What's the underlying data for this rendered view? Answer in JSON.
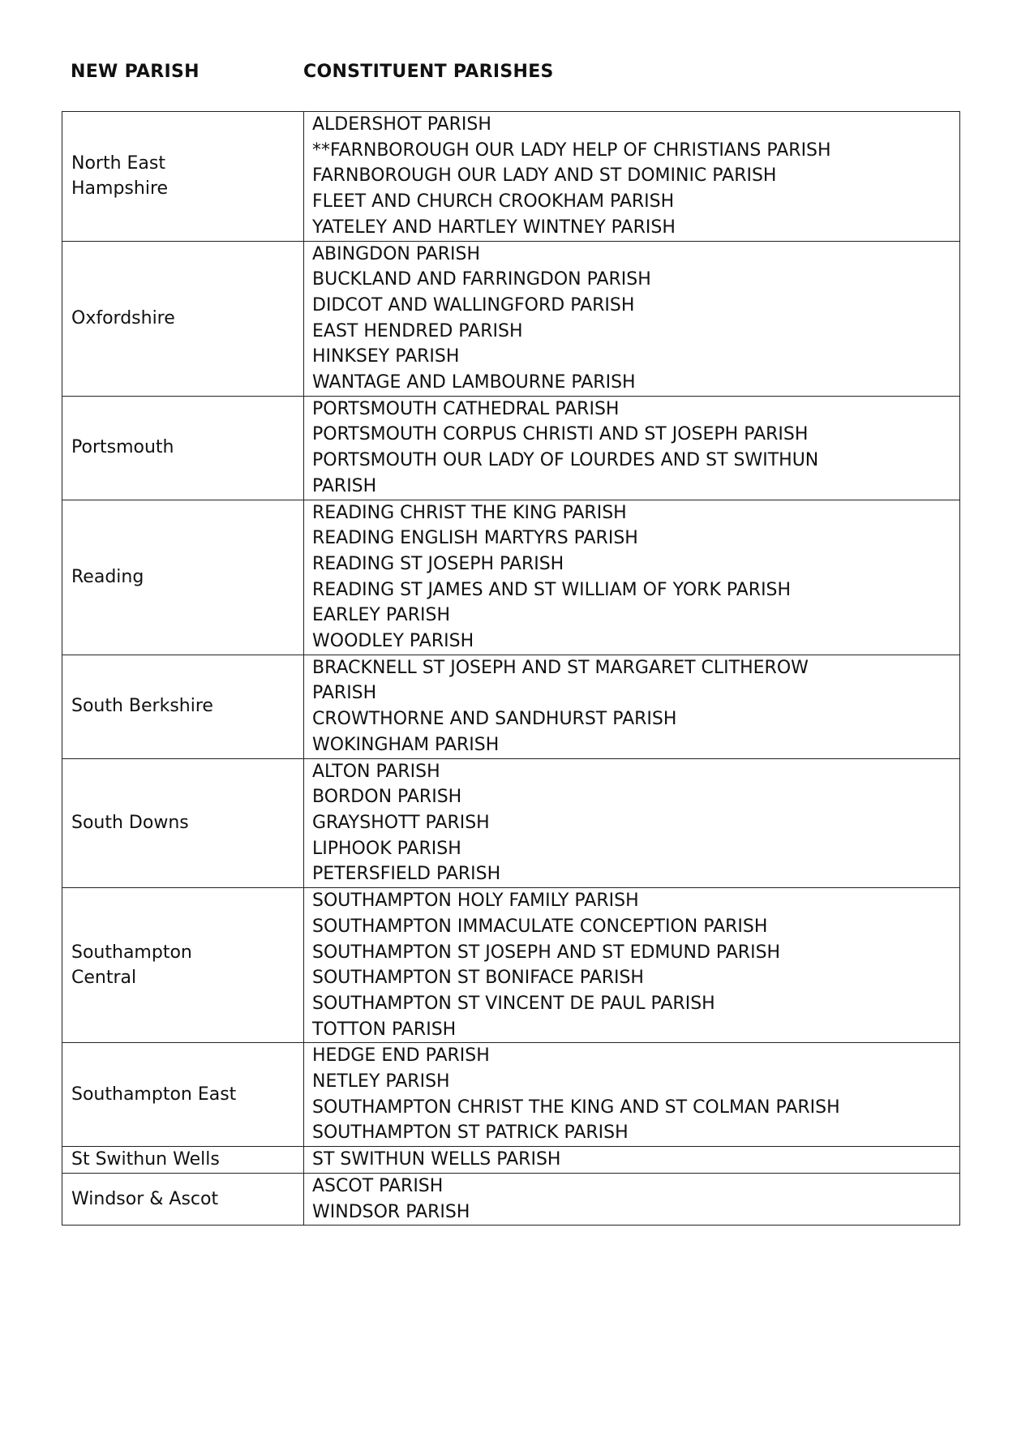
{
  "headers": {
    "new_parish": "NEW PARISH",
    "constituent": "CONSTITUENT PARISHES"
  },
  "rows": [
    {
      "new": [
        "North East",
        "Hampshire"
      ],
      "constituent": [
        "ALDERSHOT PARISH",
        "**FARNBOROUGH OUR LADY HELP OF CHRISTIANS PARISH",
        "FARNBOROUGH OUR LADY AND ST DOMINIC PARISH",
        "FLEET AND CHURCH CROOKHAM PARISH",
        "YATELEY AND HARTLEY WINTNEY PARISH"
      ]
    },
    {
      "new": [
        "Oxfordshire"
      ],
      "constituent": [
        "ABINGDON PARISH",
        "BUCKLAND AND FARRINGDON PARISH",
        "DIDCOT AND WALLINGFORD PARISH",
        "EAST HENDRED PARISH",
        "HINKSEY PARISH",
        "WANTAGE AND LAMBOURNE PARISH"
      ]
    },
    {
      "new": [
        "Portsmouth"
      ],
      "constituent": [
        "PORTSMOUTH CATHEDRAL PARISH",
        "PORTSMOUTH CORPUS CHRISTI AND ST JOSEPH PARISH",
        "PORTSMOUTH OUR LADY OF LOURDES AND ST SWITHUN",
        "PARISH"
      ]
    },
    {
      "new": [
        "Reading"
      ],
      "constituent": [
        "READING CHRIST THE KING PARISH",
        "READING ENGLISH MARTYRS PARISH",
        "READING ST JOSEPH PARISH",
        "READING ST JAMES AND ST WILLIAM OF YORK PARISH",
        "EARLEY PARISH",
        "WOODLEY PARISH"
      ]
    },
    {
      "new": [
        "South Berkshire"
      ],
      "constituent": [
        "BRACKNELL ST JOSEPH AND ST MARGARET CLITHEROW",
        "PARISH",
        "CROWTHORNE AND SANDHURST PARISH",
        "WOKINGHAM PARISH"
      ]
    },
    {
      "new": [
        "South Downs"
      ],
      "constituent": [
        "ALTON PARISH",
        "BORDON PARISH",
        "GRAYSHOTT PARISH",
        "LIPHOOK PARISH",
        "PETERSFIELD PARISH"
      ]
    },
    {
      "new": [
        "Southampton",
        "Central"
      ],
      "constituent": [
        "SOUTHAMPTON HOLY FAMILY PARISH",
        "SOUTHAMPTON IMMACULATE CONCEPTION PARISH",
        "SOUTHAMPTON ST JOSEPH AND ST EDMUND PARISH",
        "SOUTHAMPTON ST BONIFACE PARISH",
        "SOUTHAMPTON ST VINCENT DE PAUL PARISH",
        "TOTTON PARISH"
      ]
    },
    {
      "new": [
        "Southampton East"
      ],
      "constituent": [
        "HEDGE END PARISH",
        "NETLEY PARISH",
        "SOUTHAMPTON CHRIST THE KING AND ST COLMAN PARISH",
        "SOUTHAMPTON ST PATRICK PARISH"
      ]
    },
    {
      "new": [
        "St Swithun Wells"
      ],
      "constituent": [
        "ST SWITHUN WELLS PARISH"
      ]
    },
    {
      "new": [
        "Windsor & Ascot"
      ],
      "constituent": [
        "ASCOT PARISH",
        "WINDSOR PARISH"
      ]
    }
  ]
}
